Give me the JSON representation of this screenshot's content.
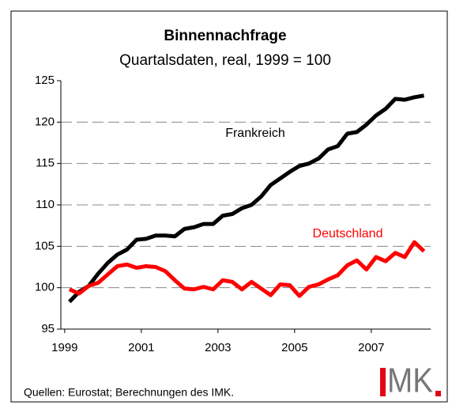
{
  "chart_data": {
    "type": "line",
    "title": "Binnennachfrage",
    "subtitle": "Quartalsdaten, real, 1999 = 100",
    "x": [
      1999.125,
      1999.375,
      1999.625,
      1999.875,
      2000.125,
      2000.375,
      2000.625,
      2000.875,
      2001.125,
      2001.375,
      2001.625,
      2001.875,
      2002.125,
      2002.375,
      2002.625,
      2002.875,
      2003.125,
      2003.375,
      2003.625,
      2003.875,
      2004.125,
      2004.375,
      2004.625,
      2004.875,
      2005.125,
      2005.375,
      2005.625,
      2005.875,
      2006.125,
      2006.375,
      2006.625,
      2006.875,
      2007.125,
      2007.375,
      2007.625,
      2007.875,
      2008.125,
      2008.375
    ],
    "series": [
      {
        "name": "Frankreich",
        "color": "#000000",
        "values": [
          98.3,
          99.5,
          100.2,
          101.7,
          103.0,
          104.0,
          104.6,
          105.8,
          105.9,
          106.3,
          106.3,
          106.2,
          107.1,
          107.3,
          107.7,
          107.7,
          108.7,
          108.9,
          109.6,
          110.0,
          111.0,
          112.4,
          113.2,
          114.0,
          114.7,
          115.0,
          115.6,
          116.7,
          117.1,
          118.6,
          118.8,
          119.7,
          120.8,
          121.6,
          122.8,
          122.7,
          123.0,
          123.2
        ]
      },
      {
        "name": "Deutschland",
        "color": "#ff0000",
        "values": [
          99.8,
          99.3,
          100.2,
          100.6,
          101.6,
          102.6,
          102.8,
          102.4,
          102.6,
          102.5,
          102.0,
          100.9,
          99.9,
          99.8,
          100.1,
          99.8,
          100.9,
          100.7,
          99.8,
          100.7,
          99.9,
          99.1,
          100.4,
          100.3,
          99.0,
          100.1,
          100.4,
          101.0,
          101.5,
          102.7,
          103.3,
          102.2,
          103.7,
          103.2,
          104.2,
          103.7,
          105.5,
          104.4
        ]
      }
    ],
    "xlim": [
      1998.9,
      2008.55
    ],
    "xticks": [
      1999,
      2001,
      2003,
      2005,
      2007
    ],
    "ylim": [
      95,
      125
    ],
    "yticks": [
      95,
      100,
      105,
      110,
      115,
      120,
      125
    ],
    "grid": true,
    "source": "Quellen: Eurostat; Berechnungen des IMK.",
    "logo": "MK"
  }
}
